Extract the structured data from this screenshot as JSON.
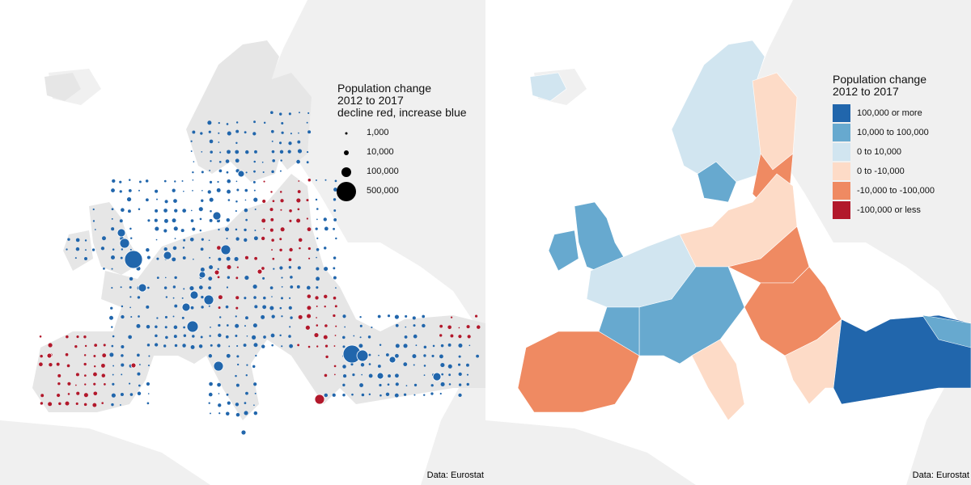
{
  "left_map": {
    "legend": {
      "title_lines": [
        "Population change",
        "2012 to 2017",
        "decline red, increase blue"
      ],
      "sizes": [
        {
          "label": "1,000",
          "value": 1000
        },
        {
          "label": "10,000",
          "value": 10000
        },
        {
          "label": "100,000",
          "value": 100000
        },
        {
          "label": "500,000",
          "value": 500000
        }
      ]
    },
    "caption": "Data: Eurostat"
  },
  "right_map": {
    "legend": {
      "title_lines": [
        "Population change",
        "2012 to 2017"
      ],
      "classes": [
        {
          "label": "100,000 or more",
          "color": "#2166ac"
        },
        {
          "label": "10,000 to 100,000",
          "color": "#67a9cf"
        },
        {
          "label": "0 to 10,000",
          "color": "#d1e5f0"
        },
        {
          "label": "0 to -10,000",
          "color": "#fddbc7"
        },
        {
          "label": "-10,000 to -100,000",
          "color": "#ef8a62"
        },
        {
          "label": "-100,000 or less",
          "color": "#b2182b"
        }
      ]
    },
    "caption": "Data: Eurostat"
  },
  "colors": {
    "increase": "#2166ac",
    "decline": "#b2182b",
    "background_land": "#f0f0f0",
    "map_land": "#e6e6e6"
  }
}
